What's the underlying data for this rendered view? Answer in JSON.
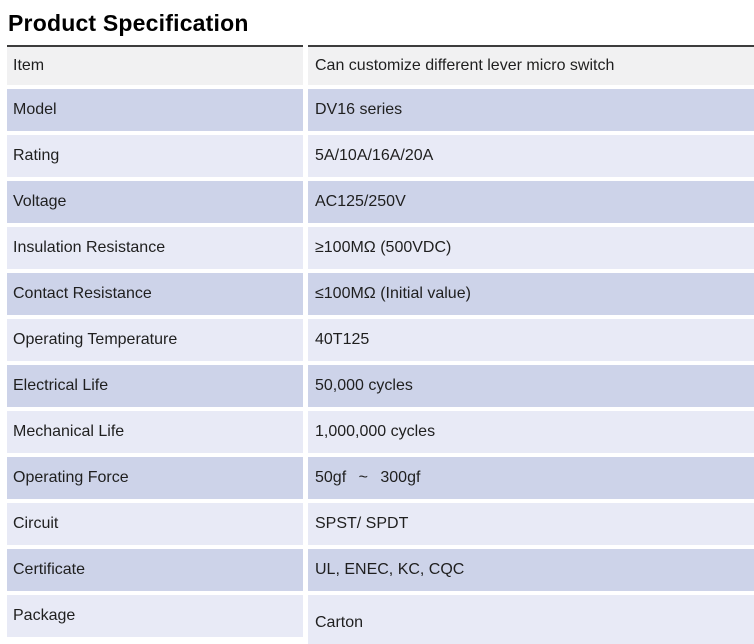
{
  "page": {
    "title": "Product Specification"
  },
  "colors": {
    "header_row": "#f1f1f2",
    "accent_row": "#cdd3e9",
    "alt_row": "#e8eaf6",
    "top_border": "#3d3d3d",
    "text": "#1f1f1f"
  },
  "table": {
    "rows": [
      {
        "label": "Item",
        "value": "Can customize different lever micro switch"
      },
      {
        "label": "Model",
        "value": "DV16 series"
      },
      {
        "label": "Rating",
        "value": "5A/10A/16A/20A"
      },
      {
        "label": "Voltage",
        "value": "AC125/250V"
      },
      {
        "label": "Insulation Resistance",
        "value": "≥100MΩ (500VDC)"
      },
      {
        "label": "Contact Resistance",
        "value": "≤100MΩ (Initial value)"
      },
      {
        "label": "Operating Temperature",
        "value": "40T125"
      },
      {
        "label": "Electrical Life",
        "value": "50,000 cycles"
      },
      {
        "label": "Mechanical Life",
        "value": "1,000,000 cycles"
      },
      {
        "label": "Operating Force",
        "value": "50gf  ~  300gf"
      },
      {
        "label": "Circuit",
        "value": "SPST/ SPDT"
      },
      {
        "label": "Certificate",
        "value": "UL, ENEC, KC, CQC"
      },
      {
        "label": "Package",
        "value": "Carton"
      }
    ]
  }
}
